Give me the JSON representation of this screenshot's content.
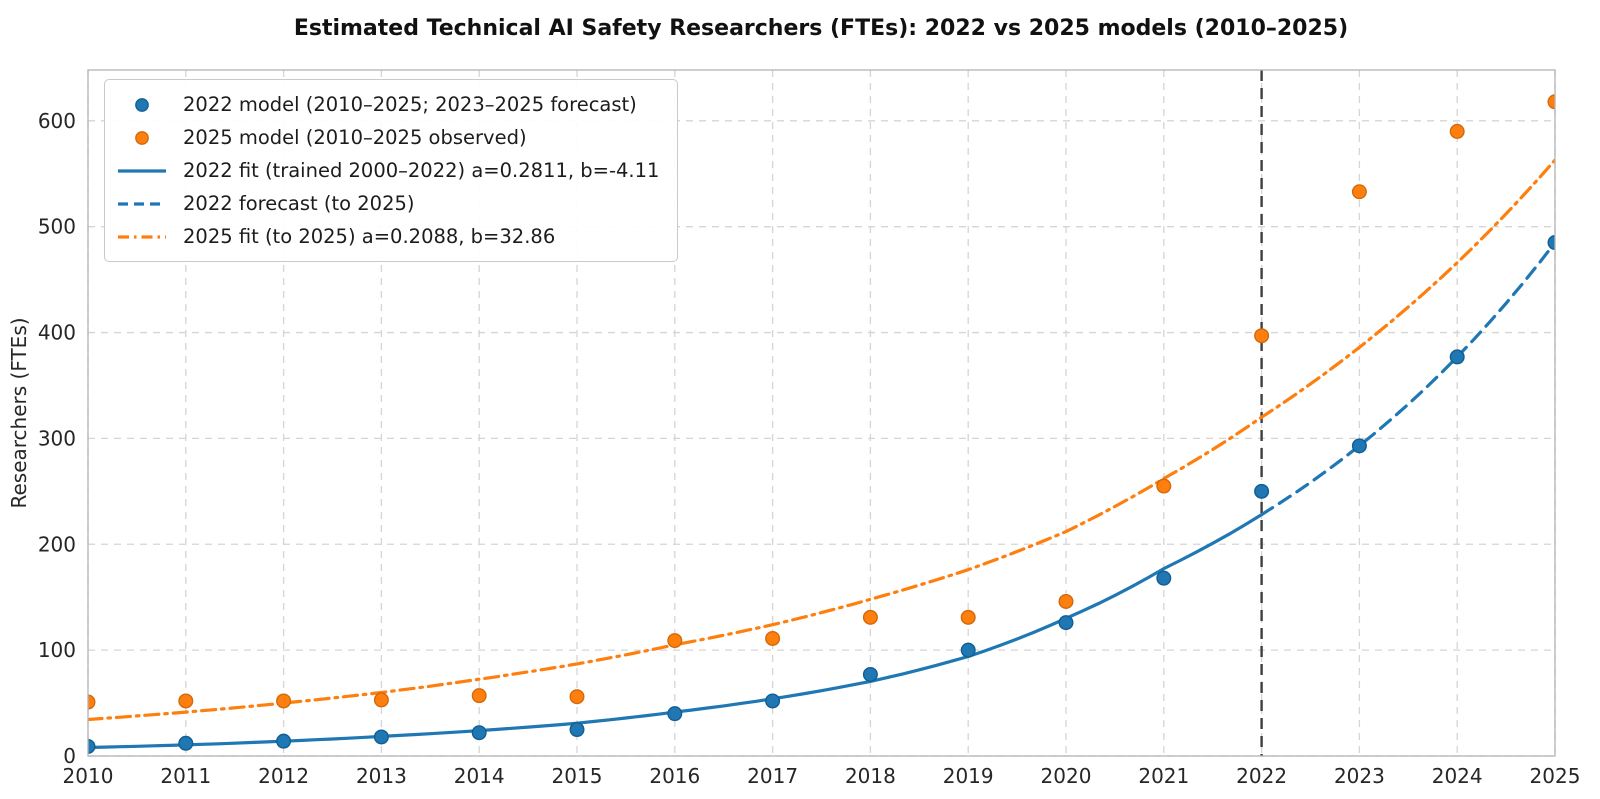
{
  "title": "Estimated Technical AI Safety Researchers (FTEs): 2022 vs 2025 models (2010–2025)",
  "chart_data": {
    "type": "scatter",
    "title": "Estimated Technical AI Safety Researchers (FTEs): 2022 vs 2025 models (2010–2025)",
    "xlabel": "",
    "ylabel": "Researchers (FTEs)",
    "xlim": [
      2010,
      2025
    ],
    "ylim": [
      0,
      648
    ],
    "xticks": [
      2010,
      2011,
      2012,
      2013,
      2014,
      2015,
      2016,
      2017,
      2018,
      2019,
      2020,
      2021,
      2022,
      2023,
      2024,
      2025
    ],
    "yticks": [
      0,
      100,
      200,
      300,
      400,
      500,
      600
    ],
    "grid": true,
    "legend_position": "upper left",
    "vline_x": 2022,
    "colors": {
      "blue": "#1f77b4",
      "blue_edge": "#135e91",
      "orange": "#ff7f0e",
      "orange_edge": "#d2690a",
      "vline": "#3f3f3f",
      "grid": "#d5d5d5",
      "spine": "#b3b3b3"
    },
    "series": [
      {
        "name": "2022 model (2010–2025; 2023–2025 forecast)",
        "type": "scatter",
        "color": "#1f77b4",
        "edge": "#135e91",
        "x": [
          2010,
          2011,
          2012,
          2013,
          2014,
          2015,
          2016,
          2017,
          2018,
          2019,
          2020,
          2021,
          2022,
          2023,
          2024,
          2025
        ],
        "y": [
          9,
          12,
          14,
          18,
          22,
          25,
          40,
          52,
          77,
          100,
          126,
          168,
          250,
          293,
          377,
          485
        ]
      },
      {
        "name": "2025 model (2010–2025 observed)",
        "type": "scatter",
        "color": "#ff7f0e",
        "edge": "#d2690a",
        "x": [
          2010,
          2011,
          2012,
          2013,
          2014,
          2015,
          2016,
          2017,
          2018,
          2019,
          2020,
          2021,
          2022,
          2023,
          2024,
          2025
        ],
        "y": [
          51,
          52,
          52,
          53,
          57,
          56,
          109,
          111,
          131,
          131,
          146,
          255,
          397,
          533,
          590,
          618
        ]
      },
      {
        "name": "2022 fit (trained 2000–2022) a=0.2811, b=-4.11",
        "type": "line",
        "dash": "solid",
        "color": "#1f77b4",
        "x": [
          2010,
          2011,
          2012,
          2013,
          2014,
          2015,
          2016,
          2017,
          2018,
          2019,
          2020,
          2021,
          2022
        ],
        "y": [
          8,
          10.5,
          14,
          18.5,
          24,
          31,
          41.5,
          54,
          70.5,
          94,
          130,
          177,
          228
        ]
      },
      {
        "name": "2022 forecast (to 2025)",
        "type": "line",
        "dash": "dashed",
        "color": "#1f77b4",
        "x": [
          2022,
          2023,
          2024,
          2025
        ],
        "y": [
          228,
          293,
          377,
          485
        ]
      },
      {
        "name": "2025 fit (to 2025) a=0.2088, b=32.86",
        "type": "line",
        "dash": "dashdot",
        "color": "#ff7f0e",
        "x": [
          2010,
          2011,
          2012,
          2013,
          2014,
          2015,
          2016,
          2017,
          2018,
          2019,
          2020,
          2021,
          2022,
          2023,
          2024,
          2025
        ],
        "y": [
          34.5,
          41.5,
          50,
          60,
          72.5,
          87,
          105,
          124,
          148,
          176,
          212,
          262,
          320,
          386,
          466,
          563
        ]
      }
    ]
  }
}
